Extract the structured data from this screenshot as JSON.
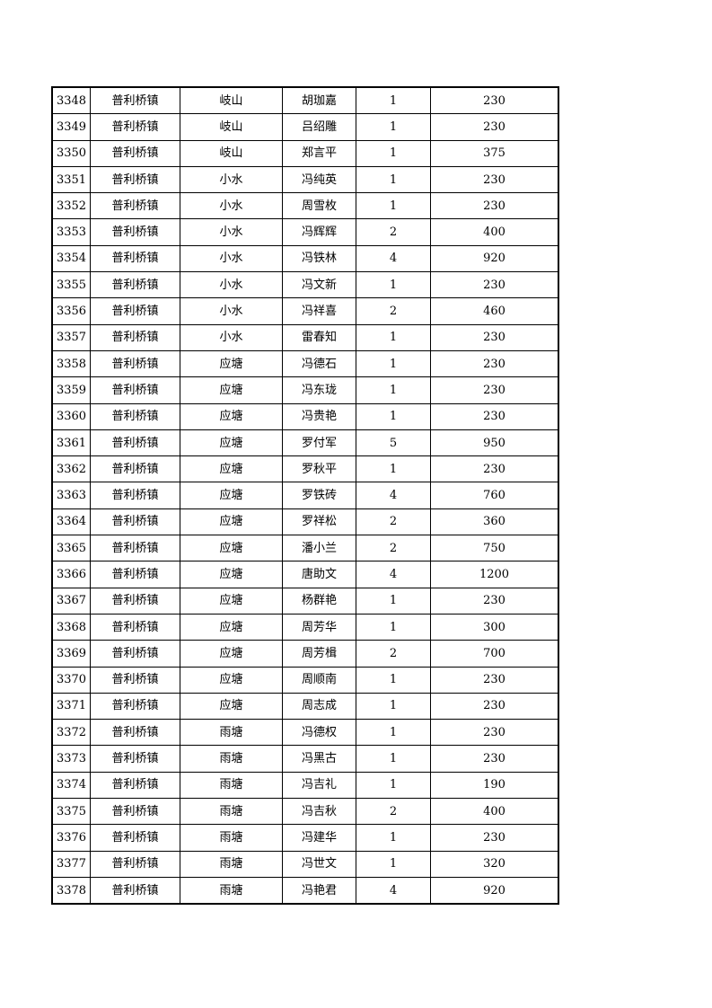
{
  "table": {
    "rows": [
      [
        "3348",
        "普利桥镇",
        "岐山",
        "胡珈嘉",
        "1",
        "230"
      ],
      [
        "3349",
        "普利桥镇",
        "岐山",
        "吕绍雕",
        "1",
        "230"
      ],
      [
        "3350",
        "普利桥镇",
        "岐山",
        "郑言平",
        "1",
        "375"
      ],
      [
        "3351",
        "普利桥镇",
        "小水",
        "冯纯英",
        "1",
        "230"
      ],
      [
        "3352",
        "普利桥镇",
        "小水",
        "周雪枚",
        "1",
        "230"
      ],
      [
        "3353",
        "普利桥镇",
        "小水",
        "冯辉辉",
        "2",
        "400"
      ],
      [
        "3354",
        "普利桥镇",
        "小水",
        "冯铁林",
        "4",
        "920"
      ],
      [
        "3355",
        "普利桥镇",
        "小水",
        "冯文新",
        "1",
        "230"
      ],
      [
        "3356",
        "普利桥镇",
        "小水",
        "冯祥喜",
        "2",
        "460"
      ],
      [
        "3357",
        "普利桥镇",
        "小水",
        "雷春知",
        "1",
        "230"
      ],
      [
        "3358",
        "普利桥镇",
        "应塘",
        "冯德石",
        "1",
        "230"
      ],
      [
        "3359",
        "普利桥镇",
        "应塘",
        "冯东珑",
        "1",
        "230"
      ],
      [
        "3360",
        "普利桥镇",
        "应塘",
        "冯贵艳",
        "1",
        "230"
      ],
      [
        "3361",
        "普利桥镇",
        "应塘",
        "罗付军",
        "5",
        "950"
      ],
      [
        "3362",
        "普利桥镇",
        "应塘",
        "罗秋平",
        "1",
        "230"
      ],
      [
        "3363",
        "普利桥镇",
        "应塘",
        "罗铁砖",
        "4",
        "760"
      ],
      [
        "3364",
        "普利桥镇",
        "应塘",
        "罗祥松",
        "2",
        "360"
      ],
      [
        "3365",
        "普利桥镇",
        "应塘",
        "潘小兰",
        "2",
        "750"
      ],
      [
        "3366",
        "普利桥镇",
        "应塘",
        "唐助文",
        "4",
        "1200"
      ],
      [
        "3367",
        "普利桥镇",
        "应塘",
        "杨群艳",
        "1",
        "230"
      ],
      [
        "3368",
        "普利桥镇",
        "应塘",
        "周芳华",
        "1",
        "300"
      ],
      [
        "3369",
        "普利桥镇",
        "应塘",
        "周芳楫",
        "2",
        "700"
      ],
      [
        "3370",
        "普利桥镇",
        "应塘",
        "周顺南",
        "1",
        "230"
      ],
      [
        "3371",
        "普利桥镇",
        "应塘",
        "周志成",
        "1",
        "230"
      ],
      [
        "3372",
        "普利桥镇",
        "雨塘",
        "冯德权",
        "1",
        "230"
      ],
      [
        "3373",
        "普利桥镇",
        "雨塘",
        "冯黑古",
        "1",
        "230"
      ],
      [
        "3374",
        "普利桥镇",
        "雨塘",
        "冯吉礼",
        "1",
        "190"
      ],
      [
        "3375",
        "普利桥镇",
        "雨塘",
        "冯吉秋",
        "2",
        "400"
      ],
      [
        "3376",
        "普利桥镇",
        "雨塘",
        "冯建华",
        "1",
        "230"
      ],
      [
        "3377",
        "普利桥镇",
        "雨塘",
        "冯世文",
        "1",
        "320"
      ],
      [
        "3378",
        "普利桥镇",
        "雨塘",
        "冯艳君",
        "4",
        "920"
      ]
    ]
  }
}
